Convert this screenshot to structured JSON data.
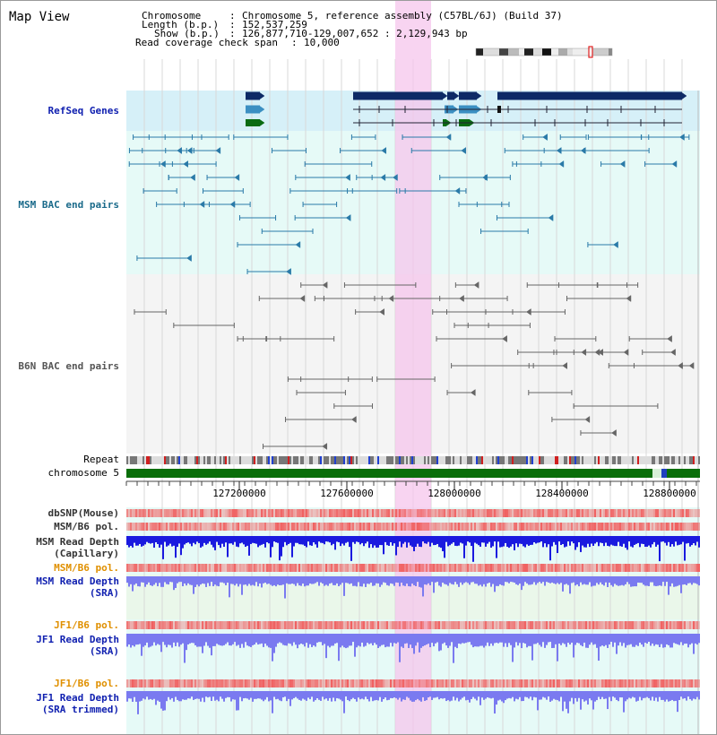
{
  "view": {
    "title": "Map View",
    "info": {
      "chromosome_label": "Chromosome",
      "chromosome_value": "Chromosome 5, reference assembly (C57BL/6J) (Build 37)",
      "length_label": "Length (b.p.)",
      "length_value": "152,537,259",
      "show_label": "Show (b.p.)",
      "show_value": "126,877,710-129,007,652 : 2,129,943 bp",
      "coverage_label": "Read coverage check span",
      "coverage_value": "10,000"
    }
  },
  "tracks": {
    "refseq": "RefSeq Genes",
    "msm_bac": "MSM BAC end pairs",
    "b6n_bac": "B6N BAC end pairs",
    "repeat": "Repeat",
    "chromosome": "chromosome 5",
    "dbsnp": "dbSNP(Mouse)",
    "msm_b6_pol": "MSM/B6 pol.",
    "msm_depth_cap_1": "MSM Read Depth",
    "msm_depth_cap_2": "(Capillary)",
    "msm_b6_pol_2": "MSM/B6 pol.",
    "msm_depth_sra_1": "MSM Read Depth",
    "msm_depth_sra_2": "(SRA)",
    "jf1_b6_pol": "JF1/B6 pol.",
    "jf1_depth_sra_1": "JF1 Read Depth",
    "jf1_depth_sra_2": "(SRA)",
    "jf1_b6_pol_2": "JF1/B6 pol.",
    "jf1_depth_trim_1": "JF1 Read Depth",
    "jf1_depth_trim_2": "(SRA trimmed)"
  },
  "axis": {
    "ticks": [
      "127200000",
      "127600000",
      "128000000",
      "128400000",
      "128800000"
    ]
  },
  "colors": {
    "refseq_bg": "#d6f0f8",
    "lane_bg": "#e6faf7",
    "highlight": "#f6c6ec",
    "gene_dark": "#0d2a66",
    "gene_mid": "#3b8fc2",
    "gene_green": "#0a6b12",
    "msm_feature": "#2a7aa8",
    "b6n_feature": "#666666",
    "chrom_bar": "#0a6e0a",
    "depth_blue": "#1a1adf",
    "depth_light": "#7a7af0",
    "pol_red": "#f06060",
    "label_blue": "#1020b0",
    "label_teal": "#1a6a8a",
    "label_orange": "#e09000"
  }
}
